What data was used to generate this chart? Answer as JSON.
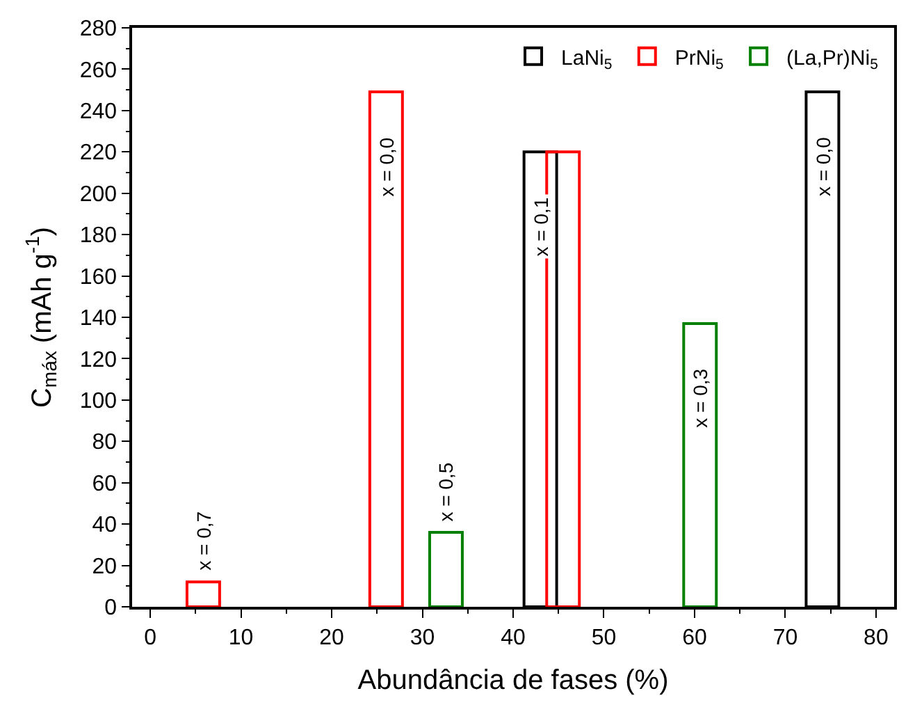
{
  "chart_data": {
    "type": "bar",
    "xlabel": "Abundância de fases (%)",
    "ylabel": "C$_{máx}$ (mAh g$^{-1}$)",
    "series": [
      {
        "name": "LaNi$_{5}$",
        "color": "#000000",
        "x": [
          43.0,
          74.1
        ],
        "values": [
          220,
          249
        ]
      },
      {
        "name": "PrNi$_{5}$",
        "color": "#ff0000",
        "x": [
          5.85,
          26.0,
          45.5
        ],
        "values": [
          12,
          249,
          220
        ]
      },
      {
        "name": "(La,Pr)Ni$_{5}$",
        "color": "#008000",
        "x": [
          32.6,
          60.6
        ],
        "values": [
          36,
          137
        ]
      }
    ],
    "xlim": [
      -2,
      82
    ],
    "xticks": [
      0,
      10,
      20,
      30,
      40,
      50,
      60,
      70,
      80
    ],
    "ylim": [
      0,
      280
    ],
    "yticks": [
      0,
      20,
      40,
      60,
      80,
      100,
      120,
      140,
      160,
      180,
      200,
      220,
      240,
      260,
      280
    ],
    "annotations": [
      {
        "text": "x = 0,7",
        "x": 5.85,
        "y": 12
      },
      {
        "text": "x = 0,0",
        "x": 26.0,
        "y": 249
      },
      {
        "text": "x = 0,5",
        "x": 32.6,
        "y": 36
      },
      {
        "text": "x = 0,1",
        "x": 43.0,
        "y": 220
      },
      {
        "text": "x = 0,3",
        "x": 60.6,
        "y": 137
      },
      {
        "text": "x = 0,0",
        "x": 74.1,
        "y": 249
      }
    ],
    "legend": "top right"
  }
}
